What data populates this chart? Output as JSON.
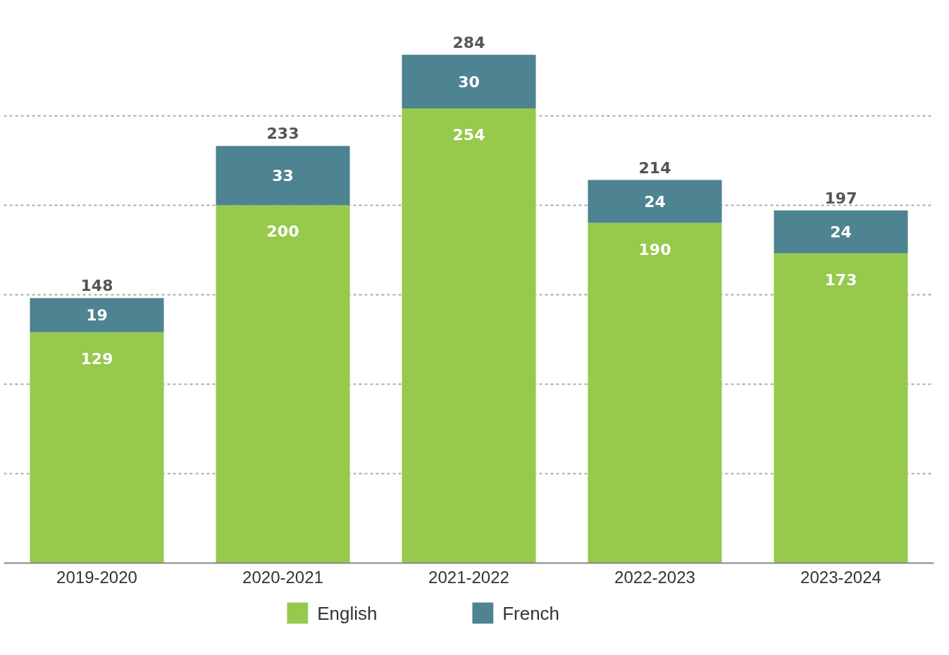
{
  "chart_data": {
    "type": "bar",
    "stacked": true,
    "categories": [
      "2019-2020",
      "2020-2021",
      "2021-2022",
      "2022-2023",
      "2023-2024"
    ],
    "series": [
      {
        "name": "English",
        "color": "#96c94c",
        "values": [
          129,
          200,
          254,
          190,
          173
        ]
      },
      {
        "name": "French",
        "color": "#4e8391",
        "values": [
          19,
          33,
          30,
          24,
          24
        ]
      }
    ],
    "totals": [
      "148",
      "233",
      "284",
      "214",
      "197"
    ],
    "data_labels": true,
    "yticks": [
      {
        "value": 0,
        "label": null
      },
      {
        "value": 50,
        "label": null
      },
      {
        "value": 100,
        "label": null
      },
      {
        "value": 150,
        "label": null
      },
      {
        "value": 200,
        "label": null
      },
      {
        "value": 250,
        "label": null
      }
    ],
    "grid": "y",
    "tick_labels": "x",
    "legend": "bottom"
  }
}
